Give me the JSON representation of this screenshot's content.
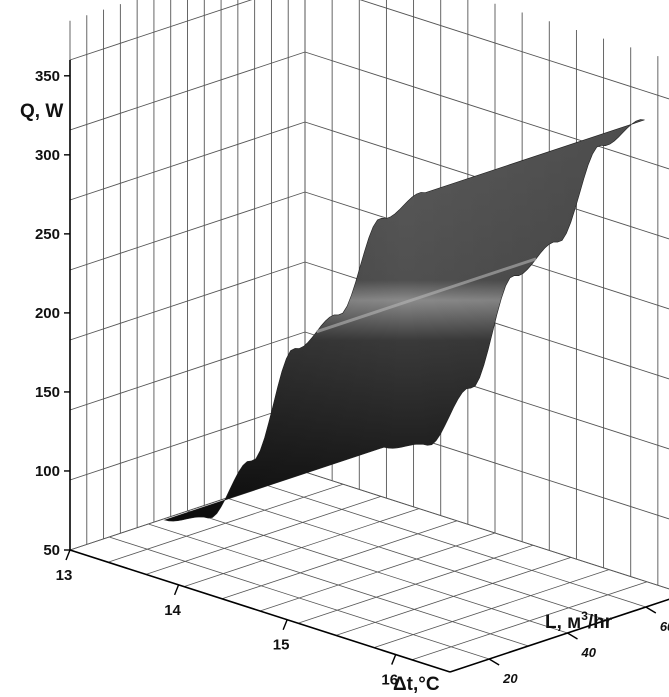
{
  "chart_data": {
    "type": "surface3d",
    "title": "",
    "zlabel": "Q, W",
    "xlabel": "Δt,°C",
    "ylabel_prefix": "L, м",
    "ylabel_sup": "3",
    "ylabel_suffix": "/hr",
    "z_ticks": [
      "350",
      "300",
      "250",
      "200",
      "150",
      "100",
      "50"
    ],
    "x_ticks": [
      "13",
      "14",
      "15",
      "16"
    ],
    "y_ticks": [
      "20",
      "40",
      "60"
    ],
    "zlim": [
      50,
      360
    ],
    "xlim": [
      13,
      16.5
    ],
    "ylim": [
      10,
      70
    ],
    "grid": true,
    "surface": {
      "description_values": true,
      "dt": [
        13.8,
        14.2,
        14.6,
        15.0,
        15.4,
        15.8,
        16.2
      ],
      "Q": [
        85,
        95,
        140,
        220,
        250,
        320,
        345
      ],
      "L": [
        12,
        68
      ]
    },
    "colors": {
      "surface_dark": "#111111",
      "surface_light": "#6a6a6a",
      "highlight": "#b5b5b5",
      "grid": "#555555"
    }
  }
}
